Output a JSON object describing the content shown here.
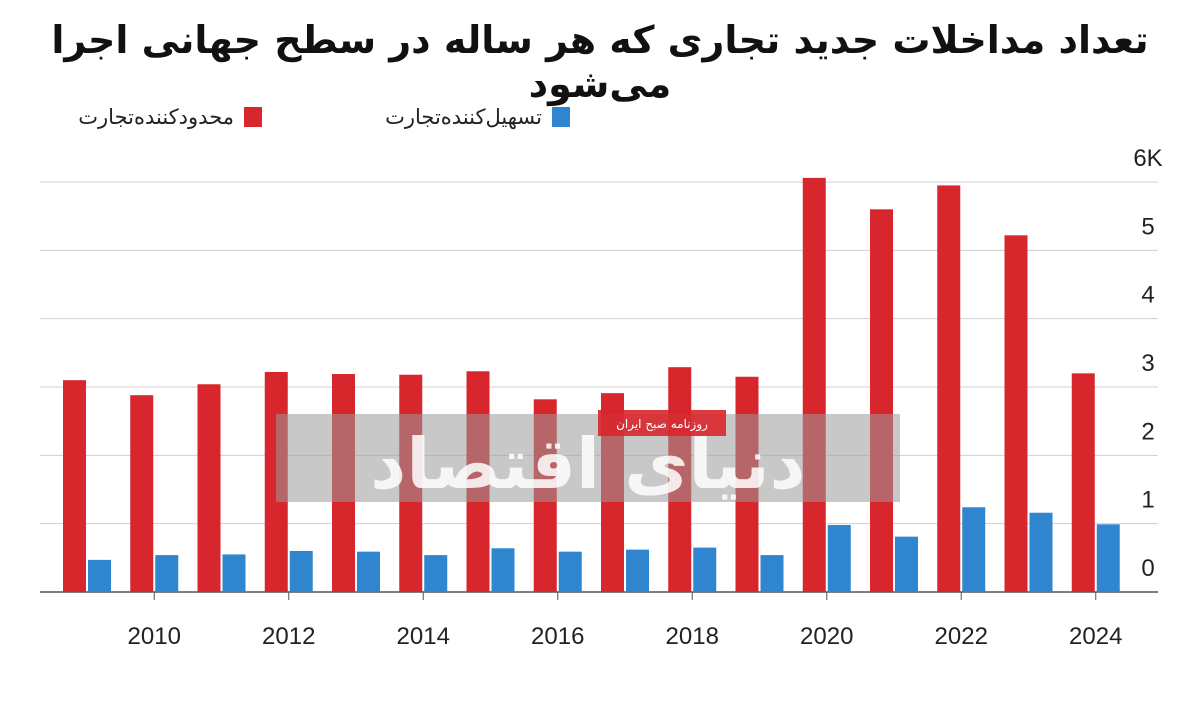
{
  "chart_data": {
    "type": "bar",
    "title": "تعداد مداخلات جدید تجاری که هر ساله در سطح جهانی اجرا می‌شود",
    "categories": [
      "2009",
      "2010",
      "2011",
      "2012",
      "2013",
      "2014",
      "2015",
      "2016",
      "2017",
      "2018",
      "2019",
      "2020",
      "2021",
      "2022",
      "2023",
      "2024"
    ],
    "x_tick_labels": [
      "2010",
      "2012",
      "2014",
      "2016",
      "2018",
      "2020",
      "2022",
      "2024"
    ],
    "series": [
      {
        "name": "محدودکننده‌تجارت",
        "color": "#d7262c",
        "values": [
          3100,
          2880,
          3040,
          3220,
          3190,
          3180,
          3230,
          2820,
          2910,
          3290,
          3150,
          6060,
          5600,
          5950,
          5220,
          3200
        ]
      },
      {
        "name": "تسهیل‌کننده‌تجارت",
        "color": "#2f86cf",
        "values": [
          470,
          540,
          550,
          600,
          590,
          540,
          640,
          590,
          620,
          650,
          540,
          980,
          810,
          1240,
          1160,
          990
        ]
      }
    ],
    "y_tick_labels": [
      "0",
      "1",
      "2",
      "3",
      "4",
      "5",
      "6K"
    ],
    "ylim": [
      0,
      6000
    ],
    "grid": true,
    "legend_position": "top-left"
  },
  "watermark": {
    "main_text": "دنیای اقتصاد",
    "badge_text": "روزنامه صبح ایران"
  }
}
